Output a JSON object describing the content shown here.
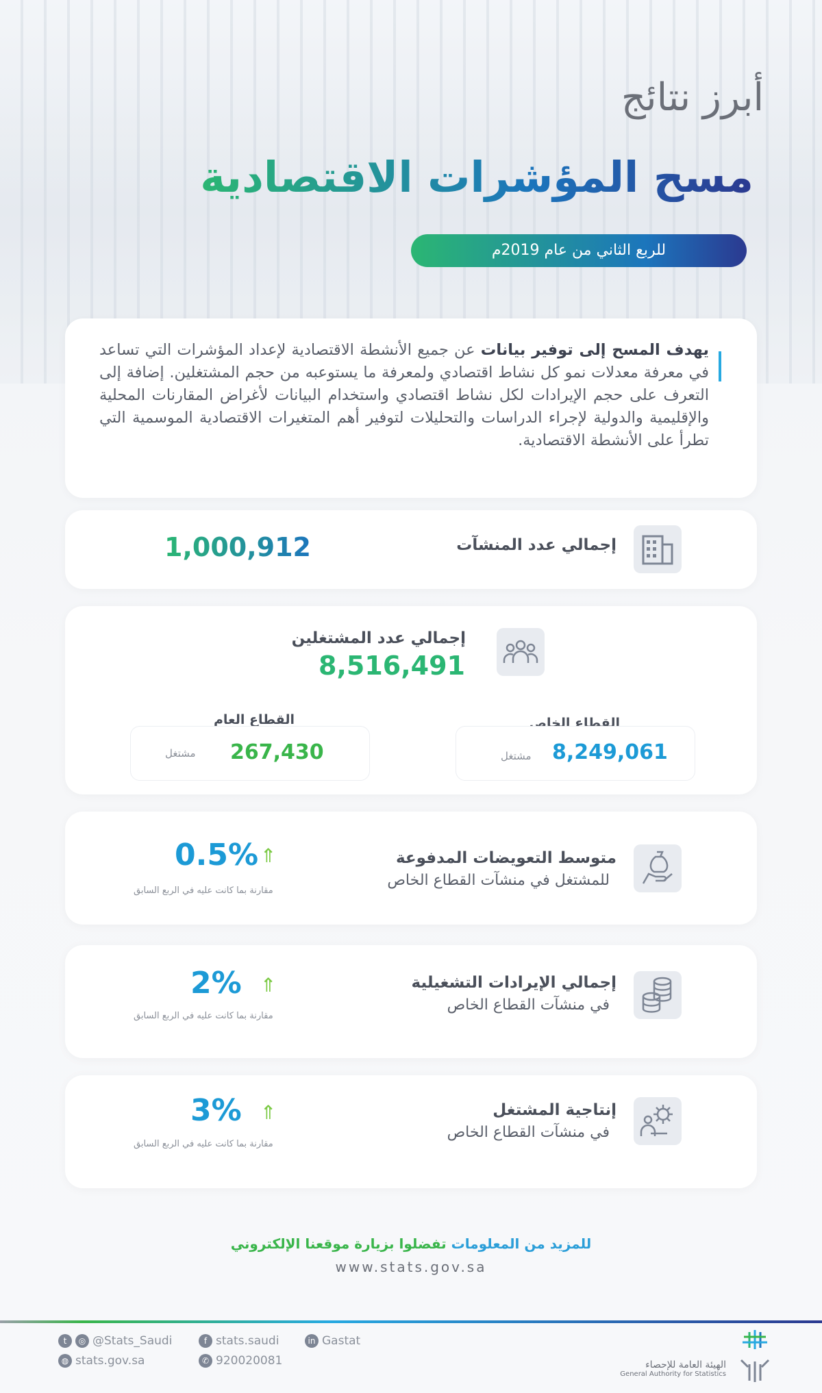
{
  "header": {
    "title_line1": "أبرز نتائج",
    "title_line2": "مسح المؤشرات الاقتصادية",
    "period": "للربع الثاني من عام 2019م"
  },
  "intro": {
    "bold": "يهدف المسح إلى توفير بيانات",
    "text": " عن جميع الأنشطة الاقتصادية لإعداد المؤشرات التي تساعد في معرفة معدلات نمو كل نشاط اقتصادي ولمعرفة ما يستوعبه من حجم المشتغلين. إضافة إلى التعرف على حجم الإيرادات لكل نشاط اقتصادي واستخدام البيانات لأغراض المقارنات المحلية والإقليمية والدولية لإجراء الدراسات والتحليلات لتوفير أهم المتغيرات الاقتصادية الموسمية التي تطرأ على الأنشطة الاقتصادية."
  },
  "establishments": {
    "label": "إجمالي عدد المنشآت",
    "value": "1,000,912",
    "icon": "building-icon"
  },
  "employees": {
    "label": "إجمالي عدد المشتغلين",
    "value": "8,516,491",
    "icon": "people-icon",
    "private": {
      "label": "القطاع الخاص",
      "value": "8,249,061",
      "unit": "مشتغل"
    },
    "public": {
      "label": "القطاع العام",
      "value": "267,430",
      "unit": "مشتغل"
    }
  },
  "indicators": [
    {
      "line1": "متوسط التعويضات المدفوعة",
      "line2": "للمشتغل في منشآت القطاع الخاص",
      "value": "0.5%",
      "note": "مقارنة بما كانت عليه في الربع السابق",
      "icon": "money-bag-hand-icon",
      "trend": "up"
    },
    {
      "line1": "إجمالي الإيرادات التشغيلية",
      "line2": "في منشآت القطاع الخاص",
      "value": "2%",
      "note": "مقارنة بما كانت عليه في الربع السابق",
      "icon": "coins-stack-icon",
      "trend": "up"
    },
    {
      "line1": "إنتاجية المشتغل",
      "line2": "في منشآت القطاع الخاص",
      "value": "3%",
      "note": "مقارنة بما كانت عليه في الربع السابق",
      "icon": "gear-worker-icon",
      "trend": "up"
    }
  ],
  "footer": {
    "more_info_a": "للمزيد من المعلومات",
    "more_info_b": " تفضلوا بزيارة موقعنا الإلكتروني",
    "url": "www.stats.gov.sa",
    "twitter": "@Stats_Saudi",
    "facebook": "stats.saudi",
    "linkedin": "Gastat",
    "web": "stats.gov.sa",
    "phone": "920020081",
    "org_ar": "الهيئة العامة للإحصاء",
    "org_en": "General Authority for Statistics"
  },
  "colors": {
    "green": "#39b54a",
    "blue": "#1c9ad6",
    "navy": "#2b3990"
  }
}
